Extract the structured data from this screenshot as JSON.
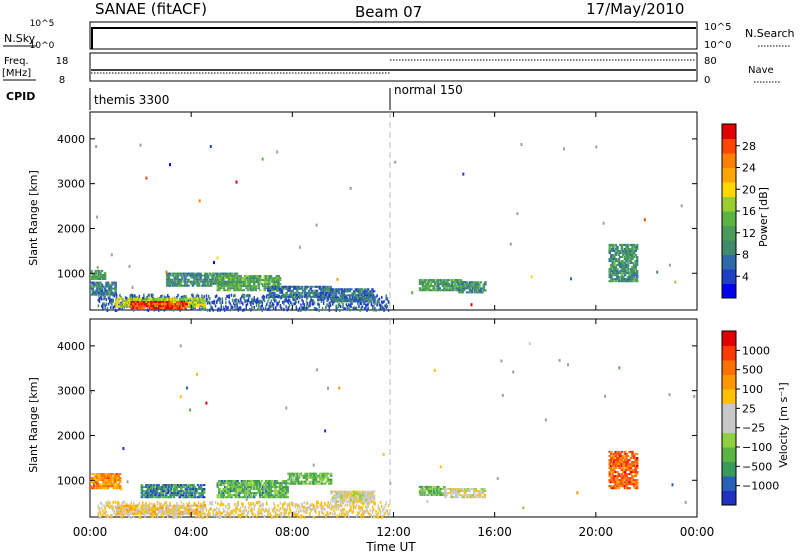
{
  "header": {
    "station": "SANAE (fitACF)",
    "beam": "Beam 07",
    "date": "17/May/2010"
  },
  "top_panels": {
    "nsky_label": "N.Sky",
    "nsky_ticks": [
      "10^5",
      "10^0"
    ],
    "nsearch_label": "N.Search",
    "nsearch_ticks": [
      "10^5",
      "10^0"
    ],
    "freq_label": "Freq.",
    "freq_unit": "[MHz]",
    "freq_ticks": [
      "18",
      "8"
    ],
    "nave_label": "Nave",
    "nave_ticks": [
      "80",
      "0"
    ],
    "cpid_label": "CPID",
    "cpid_segments": [
      {
        "name": "themis 3300",
        "start_hour": 0
      },
      {
        "name": "normal 150",
        "start_hour": 12
      }
    ],
    "freq_values_mhz": [
      {
        "start_hour": 0,
        "end_hour": 12,
        "value": 11
      },
      {
        "start_hour": 12,
        "end_hour": 24,
        "value": 11
      }
    ],
    "nave_values": [
      {
        "start_hour": 0,
        "end_hour": 12,
        "value": 15
      },
      {
        "start_hour": 12,
        "end_hour": 24,
        "value": 62
      }
    ]
  },
  "chart_data": [
    {
      "type": "heatmap",
      "parameter": "Power",
      "ylabel": "Slant Range [km]",
      "yticks": [
        "1000",
        "2000",
        "3000",
        "4000"
      ],
      "ylim": [
        180,
        4600
      ],
      "xlim": [
        0,
        24
      ],
      "colorbar_label": "Power [dB]",
      "colorbar_ticks": [
        "4",
        "8",
        "12",
        "16",
        "20",
        "24",
        "28"
      ],
      "colorbar_colors": [
        "#0000ee",
        "#1f3fc4",
        "#2f6aa8",
        "#3f8a6a",
        "#4a9a5a",
        "#5ab442",
        "#9acd32",
        "#ffd700",
        "#ffa500",
        "#ff7f00",
        "#ff4500",
        "#e00000"
      ],
      "regions": [
        {
          "t0": 0.0,
          "t1": 0.6,
          "r0": 850,
          "r1": 1050,
          "level": 0.35
        },
        {
          "t0": 0.0,
          "t1": 1.0,
          "r0": 500,
          "r1": 800,
          "level": 0.25
        },
        {
          "t0": 1.0,
          "t1": 4.5,
          "r0": 230,
          "r1": 450,
          "level": 0.55
        },
        {
          "t0": 1.6,
          "t1": 3.8,
          "r0": 200,
          "r1": 340,
          "level": 0.95
        },
        {
          "t0": 3.0,
          "t1": 5.8,
          "r0": 700,
          "r1": 1000,
          "level": 0.3
        },
        {
          "t0": 5.0,
          "t1": 7.5,
          "r0": 600,
          "r1": 950,
          "level": 0.4
        },
        {
          "t0": 7.0,
          "t1": 9.5,
          "r0": 450,
          "r1": 700,
          "level": 0.2
        },
        {
          "t0": 9.5,
          "t1": 11.2,
          "r0": 350,
          "r1": 650,
          "level": 0.2
        },
        {
          "t0": 13.0,
          "t1": 14.8,
          "r0": 600,
          "r1": 850,
          "level": 0.35
        },
        {
          "t0": 14.5,
          "t1": 15.6,
          "r0": 550,
          "r1": 800,
          "level": 0.3
        },
        {
          "t0": 20.5,
          "t1": 21.6,
          "r0": 800,
          "r1": 1650,
          "level": 0.3
        }
      ]
    },
    {
      "type": "heatmap",
      "parameter": "Velocity",
      "ylabel": "Slant Range [km]",
      "yticks": [
        "1000",
        "2000",
        "3000",
        "4000"
      ],
      "ylim": [
        180,
        4600
      ],
      "xlim": [
        0,
        24
      ],
      "colorbar_label": "Velocity [m s⁻¹]",
      "colorbar_ticks": [
        "1000",
        "500",
        "100",
        "25",
        "−25",
        "−100",
        "−500",
        "−1000"
      ],
      "colorbar_colors": [
        "#2030c0",
        "#2860b8",
        "#3a9a5a",
        "#5ab442",
        "#90d040",
        "#c8c8c8",
        "#c8c8c8",
        "#ffc000",
        "#ff9800",
        "#ff7000",
        "#ff3a00",
        "#e00000"
      ],
      "regions": [
        {
          "t0": 0.0,
          "t1": 1.2,
          "r0": 800,
          "r1": 1150,
          "level": 0.75
        },
        {
          "t0": 1.0,
          "t1": 4.5,
          "r0": 230,
          "r1": 450,
          "level": 0.6
        },
        {
          "t0": 2.0,
          "t1": 4.5,
          "r0": 600,
          "r1": 900,
          "level": 0.15
        },
        {
          "t0": 5.0,
          "t1": 7.8,
          "r0": 600,
          "r1": 1000,
          "level": 0.25
        },
        {
          "t0": 7.8,
          "t1": 9.5,
          "r0": 900,
          "r1": 1150,
          "level": 0.3
        },
        {
          "t0": 9.5,
          "t1": 11.2,
          "r0": 500,
          "r1": 750,
          "level": 0.5
        },
        {
          "t0": 13.0,
          "t1": 14.0,
          "r0": 650,
          "r1": 850,
          "level": 0.3
        },
        {
          "t0": 14.0,
          "t1": 15.6,
          "r0": 600,
          "r1": 800,
          "level": 0.5
        },
        {
          "t0": 20.5,
          "t1": 21.6,
          "r0": 800,
          "r1": 1650,
          "level": 0.85
        }
      ]
    }
  ],
  "xaxis": {
    "label": "Time UT",
    "ticks": [
      "00:00",
      "04:00",
      "08:00",
      "12:00",
      "16:00",
      "20:00",
      "00:00"
    ],
    "tick_hours": [
      0,
      4,
      8,
      12,
      16,
      20,
      24
    ],
    "mode_change_hour": 12
  }
}
